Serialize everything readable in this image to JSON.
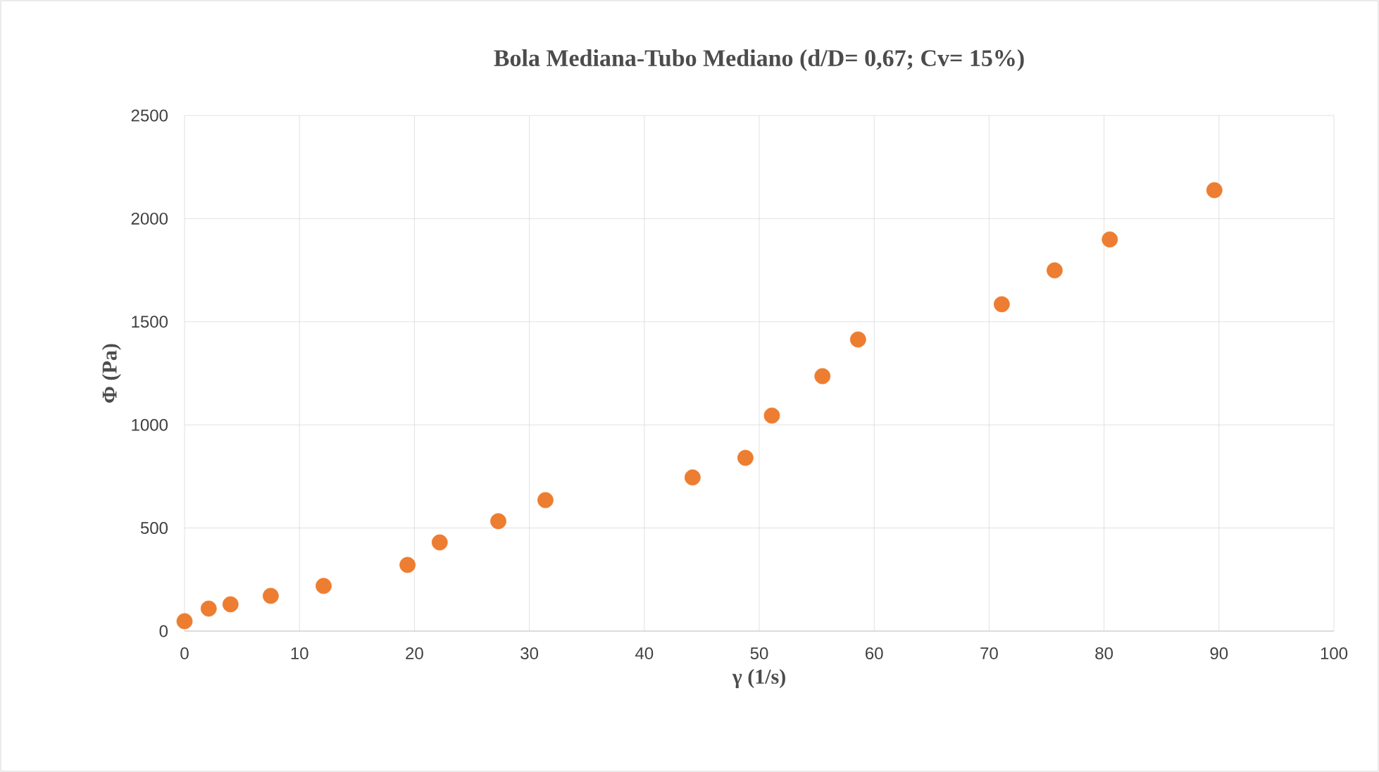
{
  "chart_data": {
    "type": "scatter",
    "title": "Bola Mediana-Tubo Mediano (d/D= 0,67; Cv= 15%)",
    "xlabel": "γ (1/s)",
    "ylabel": "Φ (Pa)",
    "x": [
      0,
      2.1,
      4.0,
      7.5,
      12.1,
      19.4,
      22.2,
      27.3,
      31.4,
      44.2,
      48.8,
      51.1,
      55.5,
      58.6,
      71.1,
      75.7,
      80.5,
      89.6
    ],
    "values": [
      48,
      109,
      130,
      171,
      219,
      321,
      430,
      533,
      635,
      745,
      840,
      1045,
      1236,
      1414,
      1585,
      1749,
      1899,
      2138
    ],
    "color": "#ed7d31",
    "marker": "circle",
    "grid": true,
    "xlim": [
      0,
      100
    ],
    "xticks": [
      0,
      10,
      20,
      30,
      40,
      50,
      60,
      70,
      80,
      90,
      100
    ],
    "ylim": [
      0,
      2500
    ],
    "yticks": [
      0,
      500,
      1000,
      1500,
      2000,
      2500
    ]
  }
}
